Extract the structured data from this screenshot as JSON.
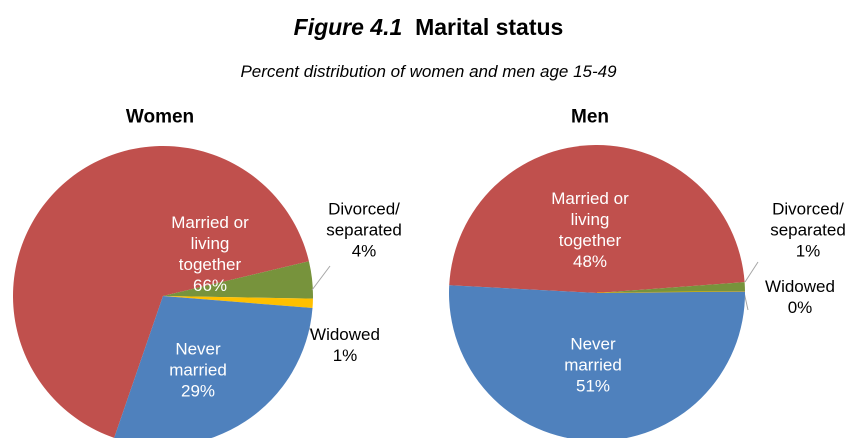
{
  "figure_label": "Figure 4.1",
  "title": "Marital status",
  "subtitle": "Percent distribution of women and men age 15-49",
  "chart_data": [
    {
      "type": "pie",
      "title": "Women",
      "categories": [
        "Married or living together",
        "Divorced/ separated",
        "Widowed",
        "Never married"
      ],
      "values": [
        66,
        4,
        1,
        29
      ],
      "value_labels": [
        "66%",
        "4%",
        "1%",
        "29%"
      ],
      "colors": [
        "#c0504d",
        "#77933c",
        "#ffc000",
        "#4f81bd"
      ]
    },
    {
      "type": "pie",
      "title": "Men",
      "categories": [
        "Married or living together",
        "Divorced/ separated",
        "Widowed",
        "Never married"
      ],
      "values": [
        48,
        1,
        0,
        51
      ],
      "value_labels": [
        "48%",
        "1%",
        "0%",
        "51%"
      ],
      "colors": [
        "#c0504d",
        "#77933c",
        "#ffc000",
        "#4f81bd"
      ]
    }
  ]
}
